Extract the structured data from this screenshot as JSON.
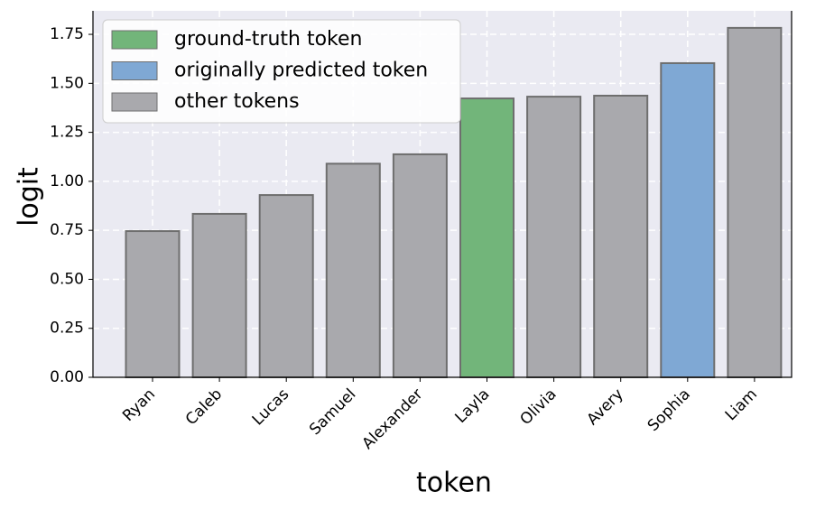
{
  "chart_data": {
    "type": "bar",
    "x_label": "token",
    "y_label": "logit",
    "categories": [
      "Ryan",
      "Caleb",
      "Lucas",
      "Samuel",
      "Alexander",
      "Layla",
      "Olivia",
      "Avery",
      "Sophia",
      "Liam"
    ],
    "values": [
      0.746,
      0.834,
      0.93,
      1.09,
      1.138,
      1.423,
      1.432,
      1.437,
      1.603,
      1.783
    ],
    "colors": [
      "#a9a9ad",
      "#a9a9ad",
      "#a9a9ad",
      "#a9a9ad",
      "#a9a9ad",
      "#72b57a",
      "#a9a9ad",
      "#a9a9ad",
      "#7fa8d4",
      "#a9a9ad"
    ],
    "legend": [
      {
        "name": "ground-truth token",
        "color": "#72b57a"
      },
      {
        "name": "originally predicted token",
        "color": "#7fa8d4"
      },
      {
        "name": "other tokens",
        "color": "#a9a9ad"
      }
    ],
    "legend_position": "upper left",
    "ylim": [
      0,
      1.87
    ],
    "yticks": [
      {
        "value": 0,
        "label": "0.00"
      },
      {
        "value": 0.25,
        "label": "0.25"
      },
      {
        "value": 0.5,
        "label": "0.50"
      },
      {
        "value": 0.75,
        "label": "0.75"
      },
      {
        "value": 1,
        "label": "1.00"
      },
      {
        "value": 1.25,
        "label": "1.25"
      },
      {
        "value": 1.5,
        "label": "1.50"
      },
      {
        "value": 1.75,
        "label": "1.75"
      }
    ],
    "grid": true
  }
}
